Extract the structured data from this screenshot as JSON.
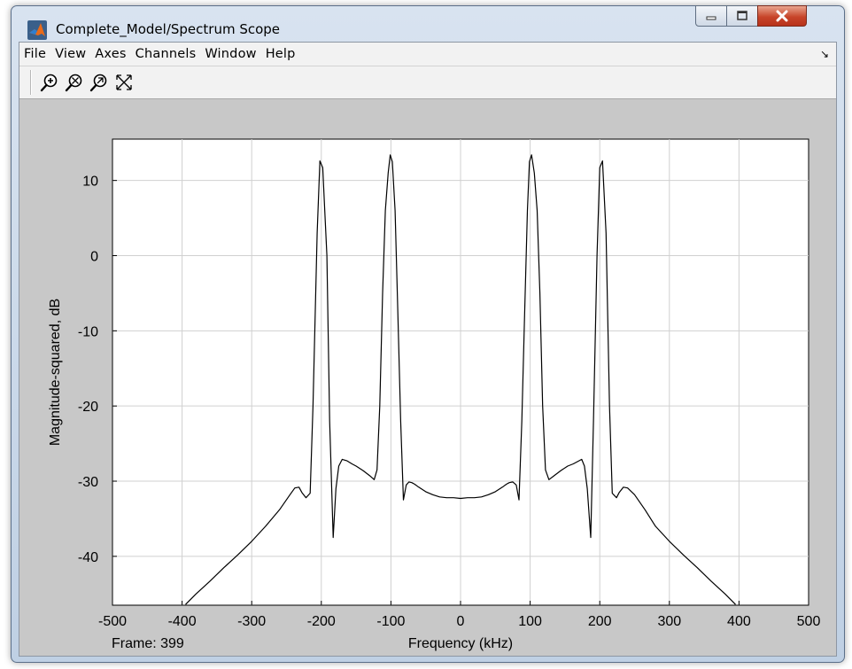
{
  "window": {
    "title": "Complete_Model/Spectrum Scope",
    "icons": {
      "app": "matlab-logo-icon",
      "minimize": "minimize-icon",
      "maximize": "maximize-icon",
      "close": "close-icon"
    }
  },
  "menu": {
    "items": [
      "File",
      "View",
      "Axes",
      "Channels",
      "Window",
      "Help"
    ],
    "dock_icon": "undock-arrow-icon",
    "dock_glyph": "↘"
  },
  "toolbar": {
    "tools": [
      "zoom-in-icon",
      "zoom-x-icon",
      "zoom-y-icon",
      "autoscale-icon"
    ]
  },
  "status": {
    "frame": "Frame: 399"
  },
  "colors": {
    "plot_bg": "#ffffff",
    "figure_bg": "#c8c8c8",
    "line": "#000000",
    "grid": "#d0d0d0"
  },
  "chart_data": {
    "type": "line",
    "title": "",
    "xlabel": "Frequency (kHz)",
    "ylabel": "Magnitude-squared, dB",
    "xlim": [
      -500,
      500
    ],
    "ylim": [
      -46.5,
      15.5
    ],
    "xticks": [
      -500,
      -400,
      -300,
      -200,
      -100,
      0,
      100,
      200,
      300,
      400,
      500
    ],
    "yticks": [
      -40,
      -30,
      -20,
      -10,
      0,
      10
    ],
    "grid": true,
    "series": [
      {
        "x": [
          -395,
          -380,
          -360,
          -340,
          -320,
          -300,
          -280,
          -260,
          -245,
          -238,
          -232,
          -228,
          -222,
          -216,
          -212,
          -206,
          -202,
          -198,
          -192,
          -188,
          -183,
          -179,
          -175,
          -170,
          -163,
          -156,
          -150,
          -140,
          -130,
          -124,
          -120,
          -116,
          -112,
          -108,
          -104,
          -101,
          -98,
          -94,
          -90,
          -86,
          -82,
          -78,
          -74,
          -70,
          -66,
          -60,
          -50,
          -40,
          -30,
          -20,
          -10,
          0,
          10,
          20,
          30,
          40,
          50,
          60,
          66,
          70,
          75,
          80,
          84,
          88,
          92,
          96,
          99,
          102,
          106,
          110,
          114,
          118,
          122,
          127,
          134,
          144,
          154,
          162,
          170,
          174,
          178,
          182,
          187,
          191,
          196,
          200,
          204,
          209,
          214,
          218,
          224,
          228,
          234,
          240,
          250,
          265,
          280,
          300,
          320,
          340,
          360,
          380,
          395
        ],
        "y": [
          -46.4,
          -45,
          -43.3,
          -41.5,
          -39.8,
          -38,
          -36,
          -33.8,
          -31.8,
          -30.9,
          -30.8,
          -31.5,
          -32.2,
          -31.6,
          -20,
          3,
          12.6,
          11.7,
          0,
          -22,
          -37.5,
          -31,
          -28,
          -27.1,
          -27.3,
          -27.7,
          -28,
          -28.6,
          -29.3,
          -29.8,
          -28.5,
          -20,
          -5,
          6,
          11,
          13.4,
          12.5,
          6,
          -8,
          -22,
          -32.5,
          -30.5,
          -30.1,
          -30.2,
          -30.4,
          -30.8,
          -31.4,
          -31.8,
          -32.1,
          -32.2,
          -32.2,
          -32.3,
          -32.2,
          -32.2,
          -32.1,
          -31.8,
          -31.4,
          -30.8,
          -30.4,
          -30.2,
          -30.1,
          -30.5,
          -32.5,
          -22,
          -8,
          6,
          12.5,
          13.4,
          11,
          6,
          -5,
          -20,
          -28.5,
          -29.8,
          -29.3,
          -28.6,
          -28,
          -27.7,
          -27.3,
          -27.1,
          -28,
          -31,
          -37.5,
          -22,
          0,
          11.7,
          12.6,
          3,
          -20,
          -31.6,
          -32.2,
          -31.5,
          -30.8,
          -30.9,
          -31.8,
          -33.8,
          -36,
          -38,
          -39.8,
          -41.5,
          -43.3,
          -45,
          -46.4
        ]
      }
    ]
  }
}
